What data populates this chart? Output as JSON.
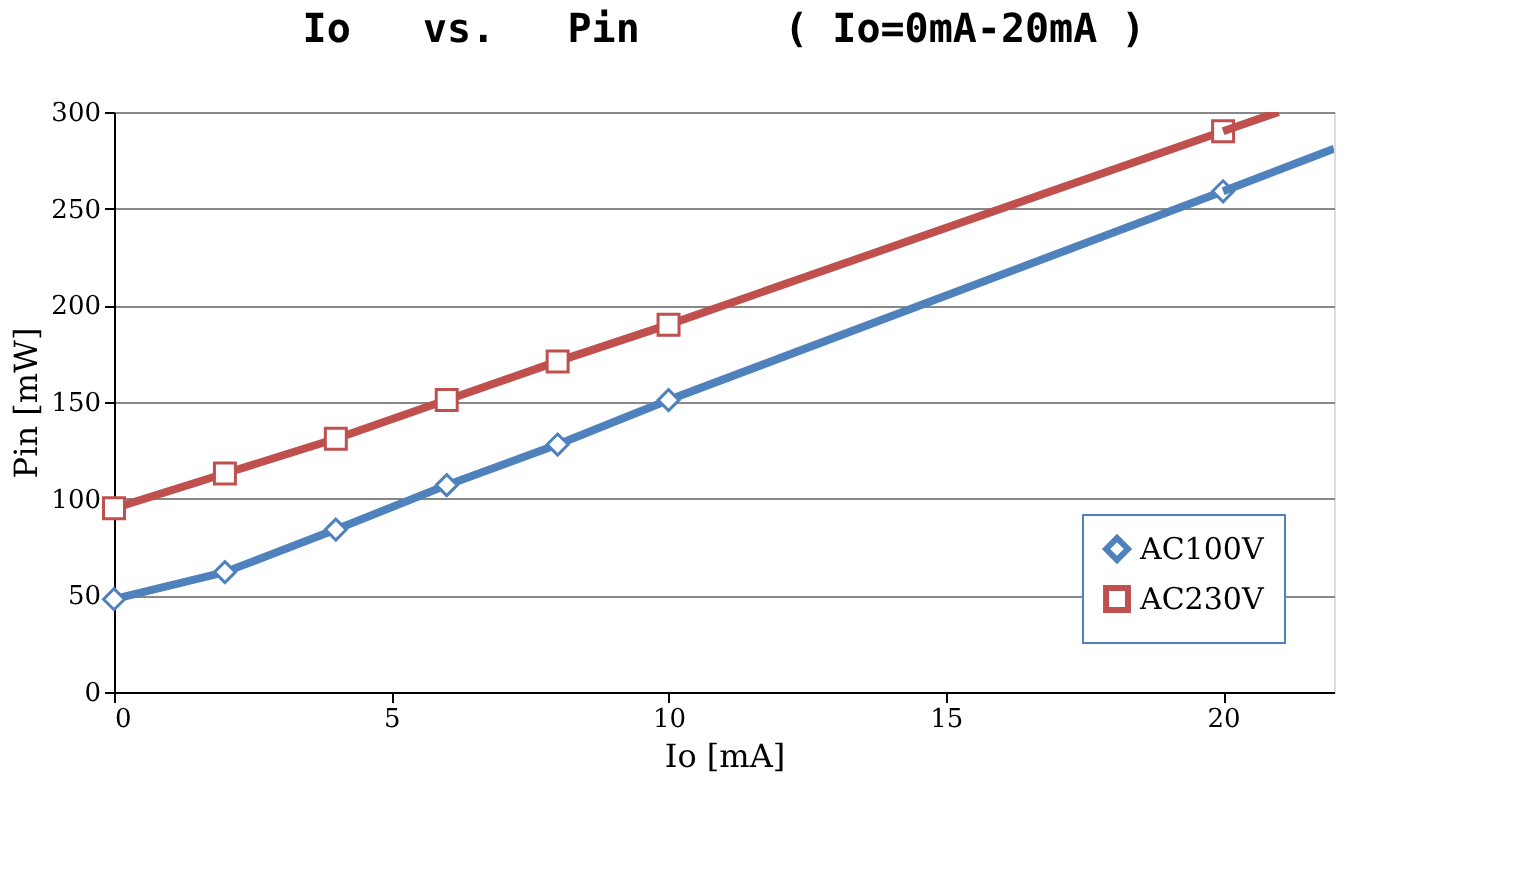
{
  "chart_data": {
    "type": "line",
    "title": "Io   vs.   Pin      ( Io=0mA-20mA )",
    "xlabel": "Io [mA]",
    "ylabel": "Pin [mW]",
    "xlim": [
      0,
      22
    ],
    "xticks": [
      0,
      5,
      10,
      15,
      20
    ],
    "ylim": [
      0,
      300
    ],
    "yticks": [
      0,
      50,
      100,
      150,
      200,
      250,
      300
    ],
    "grid": "y",
    "legend": "bottom right",
    "line_style": "solid",
    "series": [
      {
        "name": "AC100V",
        "color": "#4f81bd",
        "marker": "diamond",
        "x": [
          0,
          2,
          4,
          6,
          8,
          10,
          20
        ],
        "values": [
          48,
          62,
          84,
          107,
          128,
          151,
          259
        ]
      },
      {
        "name": "AC230V",
        "color": "#c0504d",
        "marker": "square",
        "x": [
          0,
          2,
          4,
          6,
          8,
          10,
          20
        ],
        "values": [
          95,
          113,
          131,
          151,
          171,
          190,
          290
        ]
      },
      {
        "color": "#4f81bd",
        "x": [
          20,
          22
        ],
        "values": [
          259,
          281
        ]
      },
      {
        "color": "#c0504d",
        "x": [
          20,
          21
        ],
        "values": [
          290,
          300
        ]
      }
    ]
  }
}
